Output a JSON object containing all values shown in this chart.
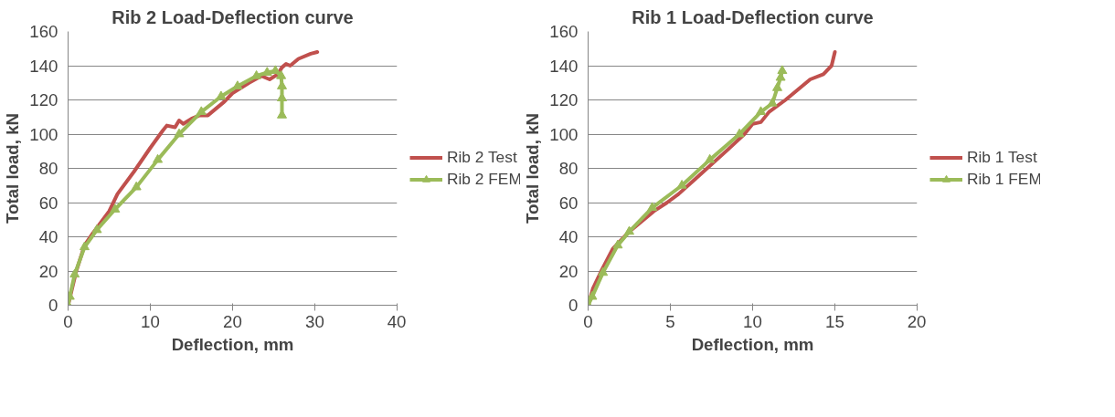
{
  "chart_data": [
    {
      "type": "line",
      "title": "Rib 2 Load-Deflection curve",
      "xlabel": "Deflection, mm",
      "ylabel": "Total load, kN",
      "xlim": [
        0,
        40
      ],
      "xticks": [
        0,
        10,
        20,
        30,
        40
      ],
      "ylim": [
        0,
        160
      ],
      "yticks": [
        0,
        20,
        40,
        60,
        80,
        100,
        120,
        140,
        160
      ],
      "grid": "y",
      "legend": "right",
      "line_style": "solid",
      "series": [
        {
          "name": "Rib 2 Test",
          "color": "#c0504d",
          "marker": "none",
          "x": [
            0,
            0.5,
            1,
            2,
            3,
            5,
            6,
            8,
            10,
            11.5,
            12,
            13,
            13.5,
            14,
            15,
            16,
            17,
            18,
            19,
            20,
            22,
            23.5,
            24.5,
            25.5,
            26,
            26.5,
            27,
            28,
            29.5,
            30.3
          ],
          "values": [
            0,
            10,
            20,
            35,
            42,
            55,
            65,
            78,
            92,
            102,
            105,
            104,
            108,
            106,
            109,
            111,
            111,
            115,
            119,
            124,
            130,
            134,
            132,
            135,
            139,
            141,
            140,
            144,
            147,
            148
          ]
        },
        {
          "name": "Rib 2 FEM",
          "color": "#9bbb59",
          "marker": "triangle",
          "x": [
            0,
            0.2,
            0.8,
            2,
            3.5,
            5.7,
            8.3,
            10.9,
            13.5,
            16.2,
            18.6,
            20.6,
            22.9,
            24.2,
            25.2,
            25.9,
            26,
            26,
            26
          ],
          "values": [
            0,
            5,
            18,
            34,
            44,
            56,
            69,
            85,
            100,
            113,
            122,
            128,
            134,
            136,
            137,
            134,
            128,
            121,
            111
          ]
        }
      ]
    },
    {
      "type": "line",
      "title": "Rib 1 Load-Deflection curve",
      "xlabel": "Deflection, mm",
      "ylabel": "Total load, kN",
      "xlim": [
        0,
        20
      ],
      "xticks": [
        0,
        5,
        10,
        15,
        20
      ],
      "ylim": [
        0,
        160
      ],
      "yticks": [
        0,
        20,
        40,
        60,
        80,
        100,
        120,
        140,
        160
      ],
      "grid": "y",
      "legend": "right",
      "line_style": "solid",
      "series": [
        {
          "name": "Rib 1 Test",
          "color": "#c0504d",
          "marker": "none",
          "x": [
            0,
            0.3,
            0.8,
            1.5,
            2.5,
            4,
            4.8,
            5.5,
            7,
            8.5,
            9.5,
            10,
            10.5,
            11,
            12,
            13,
            13.5,
            14.3,
            14.8,
            15
          ],
          "values": [
            0,
            10,
            20,
            33,
            43,
            55,
            60,
            65,
            78,
            91,
            100,
            106,
            107,
            113,
            120,
            128,
            132,
            135,
            140,
            148
          ]
        },
        {
          "name": "Rib 1 FEM",
          "color": "#9bbb59",
          "marker": "triangle",
          "x": [
            0,
            0.25,
            0.9,
            1.8,
            2.5,
            3.9,
            5.7,
            7.4,
            9.2,
            10.5,
            11.2,
            11.5,
            11.7,
            11.8
          ],
          "values": [
            0,
            5,
            19,
            35,
            43,
            57,
            70,
            85,
            100,
            113,
            118,
            127,
            133,
            137
          ]
        }
      ]
    }
  ]
}
